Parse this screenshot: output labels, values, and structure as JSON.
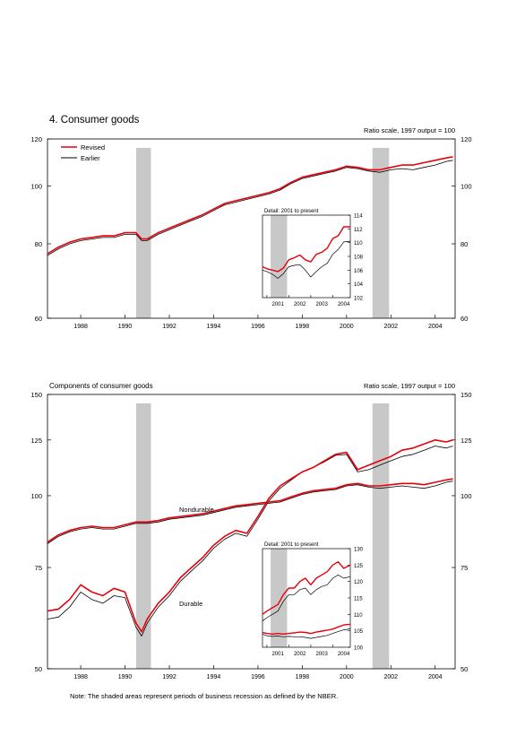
{
  "colors": {
    "revised": "#e8000b",
    "earlier": "#000000",
    "recession": "#c8c8c8"
  },
  "note": "Note: The shaded areas represent periods of business recession as defined by the NBER.",
  "chart_data": [
    {
      "type": "line",
      "title": "4. Consumer goods",
      "scale_label": "Ratio scale, 1997 output = 100",
      "log_scale": true,
      "xlim": [
        1986.5,
        2004.9
      ],
      "ylim": [
        60,
        120
      ],
      "x_ticks": [
        1988,
        1990,
        1992,
        1994,
        1996,
        1998,
        2000,
        2002,
        2004
      ],
      "y_ticks": [
        60,
        80,
        100,
        120
      ],
      "recessions": [
        [
          1990.5,
          1991.17
        ],
        [
          2001.17,
          2001.92
        ]
      ],
      "legend": [
        "Revised",
        "Earlier"
      ],
      "legend_position": "top-left",
      "series": [
        {
          "name": "Revised",
          "color": "#e8000b",
          "x": [
            1986.5,
            1987,
            1987.5,
            1988,
            1988.5,
            1989,
            1989.5,
            1990,
            1990.5,
            1990.75,
            1991,
            1991.5,
            1992,
            1992.5,
            1993,
            1993.5,
            1994,
            1994.5,
            1995,
            1995.5,
            1996,
            1996.5,
            1997,
            1997.5,
            1998,
            1998.5,
            1999,
            1999.5,
            2000,
            2000.5,
            2001,
            2001.5,
            2002,
            2002.5,
            2003,
            2003.5,
            2004,
            2004.5,
            2004.8
          ],
          "values": [
            77,
            79,
            80.5,
            81.5,
            82,
            82.5,
            82.5,
            83.5,
            83.5,
            81.5,
            81.5,
            83.5,
            85,
            86.5,
            88,
            89.5,
            91.5,
            93.5,
            94.5,
            95.5,
            96.5,
            97.5,
            99,
            101.5,
            103.5,
            104.5,
            105.5,
            106.5,
            108,
            107.5,
            106.5,
            106.5,
            107.5,
            108.5,
            108.5,
            109.5,
            110.5,
            111.5,
            112
          ]
        },
        {
          "name": "Earlier",
          "color": "#000000",
          "x": [
            1986.5,
            1987,
            1987.5,
            1988,
            1988.5,
            1989,
            1989.5,
            1990,
            1990.5,
            1990.75,
            1991,
            1991.5,
            1992,
            1992.5,
            1993,
            1993.5,
            1994,
            1994.5,
            1995,
            1995.5,
            1996,
            1996.5,
            1997,
            1997.5,
            1998,
            1998.5,
            1999,
            1999.5,
            2000,
            2000.5,
            2001,
            2001.5,
            2002,
            2002.5,
            2003,
            2003.5,
            2004,
            2004.5,
            2004.8
          ],
          "values": [
            76.5,
            78.5,
            80,
            81,
            81.5,
            82,
            82,
            83,
            83,
            81,
            81,
            83,
            84.5,
            86,
            87.5,
            89,
            91,
            93,
            94,
            95,
            96,
            97,
            98.5,
            101,
            103,
            104,
            105,
            106,
            107.5,
            107,
            106,
            105.5,
            106.5,
            107,
            106.5,
            107.5,
            108.5,
            110,
            110.5
          ]
        }
      ],
      "inset": {
        "title": "Detail: 2001 to present",
        "xlim": [
          2000.8,
          2004.8
        ],
        "ylim": [
          102,
          114
        ],
        "x_ticks": [
          2001,
          2002,
          2003,
          2004
        ],
        "y_ticks": [
          102,
          104,
          106,
          108,
          110,
          112,
          114
        ],
        "recessions": [
          [
            2001.17,
            2001.92
          ]
        ],
        "series": [
          {
            "name": "Revised",
            "color": "#e8000b",
            "x": [
              2000.8,
              2001,
              2001.25,
              2001.5,
              2001.75,
              2002,
              2002.25,
              2002.5,
              2002.75,
              2003,
              2003.25,
              2003.5,
              2003.75,
              2004,
              2004.25,
              2004.5,
              2004.8
            ],
            "values": [
              106.5,
              106.2,
              106,
              105.8,
              106.3,
              107.5,
              107.8,
              108.2,
              107.5,
              107.2,
              108.3,
              108.6,
              109.2,
              110.6,
              111,
              112.3,
              112.3
            ]
          },
          {
            "name": "Earlier",
            "color": "#000000",
            "x": [
              2000.8,
              2001,
              2001.25,
              2001.5,
              2001.75,
              2002,
              2002.25,
              2002.5,
              2002.75,
              2003,
              2003.25,
              2003.5,
              2003.75,
              2004,
              2004.25,
              2004.5,
              2004.8
            ],
            "values": [
              106,
              105.8,
              105.4,
              104.8,
              105.5,
              106.5,
              106.7,
              106.8,
              106,
              105,
              105.8,
              106.5,
              107,
              108.3,
              109,
              110.1,
              110.2
            ]
          }
        ]
      }
    },
    {
      "type": "line",
      "title": "Components of consumer goods",
      "scale_label": "Ratio scale, 1997 output = 100",
      "log_scale": true,
      "xlim": [
        1986.5,
        2004.9
      ],
      "ylim": [
        50,
        150
      ],
      "x_ticks": [
        1988,
        1990,
        1992,
        1994,
        1996,
        1998,
        2000,
        2002,
        2004
      ],
      "y_ticks": [
        50,
        75,
        100,
        125,
        150
      ],
      "recessions": [
        [
          1990.5,
          1991.17
        ],
        [
          2001.17,
          2001.92
        ]
      ],
      "annotations": [
        "Nondurable",
        "Durable"
      ],
      "series": [
        {
          "name": "Nondurable Revised",
          "color": "#e8000b",
          "x": [
            1986.5,
            1987,
            1987.5,
            1988,
            1988.5,
            1989,
            1989.5,
            1990,
            1990.5,
            1991,
            1991.5,
            1992,
            1992.5,
            1993,
            1993.5,
            1994,
            1994.5,
            1995,
            1995.5,
            1996,
            1996.5,
            1997,
            1997.5,
            1998,
            1998.5,
            1999,
            1999.5,
            2000,
            2000.5,
            2001,
            2001.5,
            2002,
            2002.5,
            2003,
            2003.5,
            2004,
            2004.5,
            2004.8
          ],
          "values": [
            83,
            85.5,
            87,
            88,
            88.5,
            88,
            88,
            89,
            90,
            90,
            90.5,
            91.5,
            92,
            92.5,
            93,
            94,
            95,
            96,
            96.5,
            97,
            97.5,
            98,
            99.5,
            101,
            102,
            102.5,
            103,
            104.5,
            105,
            104,
            104,
            104.5,
            105,
            105,
            104.5,
            105.5,
            106.5,
            107
          ]
        },
        {
          "name": "Nondurable Earlier",
          "color": "#000000",
          "x": [
            1986.5,
            1987,
            1987.5,
            1988,
            1988.5,
            1989,
            1989.5,
            1990,
            1990.5,
            1991,
            1991.5,
            1992,
            1992.5,
            1993,
            1993.5,
            1994,
            1994.5,
            1995,
            1995.5,
            1996,
            1996.5,
            1997,
            1997.5,
            1998,
            1998.5,
            1999,
            1999.5,
            2000,
            2000.5,
            2001,
            2001.5,
            2002,
            2002.5,
            2003,
            2003.5,
            2004,
            2004.5,
            2004.8
          ],
          "values": [
            82.5,
            85,
            86.5,
            87.5,
            88,
            87.5,
            87.5,
            88.5,
            89.5,
            89.5,
            90,
            91,
            91.5,
            92,
            92.5,
            93.5,
            94.5,
            95.5,
            96,
            96.5,
            97,
            97.5,
            99,
            100.5,
            101.5,
            102,
            102.5,
            104,
            104.5,
            103.5,
            103,
            103.5,
            104,
            103.5,
            103,
            104,
            105.5,
            106
          ]
        },
        {
          "name": "Durable Revised",
          "color": "#e8000b",
          "x": [
            1986.5,
            1987,
            1987.5,
            1988,
            1988.5,
            1989,
            1989.5,
            1990,
            1990.5,
            1990.75,
            1991,
            1991.5,
            1992,
            1992.5,
            1993,
            1993.5,
            1994,
            1994.5,
            1995,
            1995.5,
            1996,
            1996.5,
            1997,
            1997.5,
            1998,
            1998.5,
            1999,
            1999.5,
            2000,
            2000.5,
            2001,
            2001.5,
            2002,
            2002.5,
            2003,
            2003.5,
            2004,
            2004.5,
            2004.8
          ],
          "values": [
            63,
            63.5,
            66,
            70,
            68,
            67,
            69,
            68,
            60,
            58,
            61,
            65,
            68,
            72,
            75,
            78,
            82,
            85,
            87,
            86,
            92,
            99,
            104,
            107,
            110,
            112,
            115,
            118,
            119,
            111,
            113,
            115,
            117,
            120,
            121,
            123,
            125,
            124,
            125
          ]
        },
        {
          "name": "Durable Earlier",
          "color": "#000000",
          "x": [
            1986.5,
            1987,
            1987.5,
            1988,
            1988.5,
            1989,
            1989.5,
            1990,
            1990.5,
            1990.75,
            1991,
            1991.5,
            1992,
            1992.5,
            1993,
            1993.5,
            1994,
            1994.5,
            1995,
            1995.5,
            1996,
            1996.5,
            1997,
            1997.5,
            1998,
            1998.5,
            1999,
            1999.5,
            2000,
            2000.5,
            2001,
            2001.5,
            2002,
            2002.5,
            2003,
            2003.5,
            2004,
            2004.5,
            2004.8
          ],
          "values": [
            61,
            61.5,
            64,
            68,
            66,
            65,
            67,
            66.5,
            59,
            57,
            60,
            64,
            67,
            71,
            74,
            77,
            81,
            84,
            86,
            85,
            91,
            98,
            103,
            106.5,
            110,
            112,
            114.5,
            117.5,
            118,
            110,
            111,
            113,
            115,
            117,
            118,
            120,
            122,
            121,
            122
          ]
        }
      ],
      "inset": {
        "title": "Detail: 2001 to present",
        "xlim": [
          2000.8,
          2004.8
        ],
        "ylim": [
          100,
          130
        ],
        "x_ticks": [
          2001,
          2002,
          2003,
          2004
        ],
        "y_ticks": [
          100,
          105,
          110,
          115,
          120,
          125,
          130
        ],
        "recessions": [
          [
            2001.17,
            2001.92
          ]
        ],
        "series": [
          {
            "name": "Durable Revised",
            "color": "#e8000b",
            "x": [
              2000.8,
              2001,
              2001.25,
              2001.5,
              2001.75,
              2002,
              2002.25,
              2002.5,
              2002.75,
              2003,
              2003.25,
              2003.5,
              2003.75,
              2004,
              2004.25,
              2004.5,
              2004.8
            ],
            "values": [
              110,
              111,
              112,
              113,
              116,
              118,
              118,
              120,
              121,
              119,
              121,
              122,
              123,
              125,
              126,
              124,
              125
            ]
          },
          {
            "name": "Durable Earlier",
            "color": "#000000",
            "x": [
              2000.8,
              2001,
              2001.25,
              2001.5,
              2001.75,
              2002,
              2002.25,
              2002.5,
              2002.75,
              2003,
              2003.25,
              2003.5,
              2003.75,
              2004,
              2004.25,
              2004.5,
              2004.8
            ],
            "values": [
              108,
              109,
              110,
              111,
              114,
              116,
              116,
              117.5,
              118,
              116,
              117.5,
              118.5,
              119,
              121,
              122,
              121,
              121.5
            ]
          },
          {
            "name": "Nondurable Revised",
            "color": "#e8000b",
            "x": [
              2000.8,
              2001,
              2001.25,
              2001.5,
              2001.75,
              2002,
              2002.25,
              2002.5,
              2002.75,
              2003,
              2003.25,
              2003.5,
              2003.75,
              2004,
              2004.25,
              2004.5,
              2004.8
            ],
            "values": [
              104.5,
              104.2,
              104,
              104.2,
              104,
              104.2,
              104.4,
              104.6,
              104.5,
              104.2,
              104.6,
              104.9,
              105.2,
              105.5,
              106.2,
              106.8,
              107
            ]
          },
          {
            "name": "Nondurable Earlier",
            "color": "#000000",
            "x": [
              2000.8,
              2001,
              2001.25,
              2001.5,
              2001.75,
              2002,
              2002.25,
              2002.5,
              2002.75,
              2003,
              2003.25,
              2003.5,
              2003.75,
              2004,
              2004.25,
              2004.5,
              2004.8
            ],
            "values": [
              104,
              103.5,
              103.3,
              103.4,
              103.2,
              103.3,
              103.2,
              103.2,
              103,
              102.7,
              103,
              103.3,
              103.6,
              104.2,
              104.8,
              105.3,
              105.6
            ]
          }
        ]
      }
    }
  ]
}
